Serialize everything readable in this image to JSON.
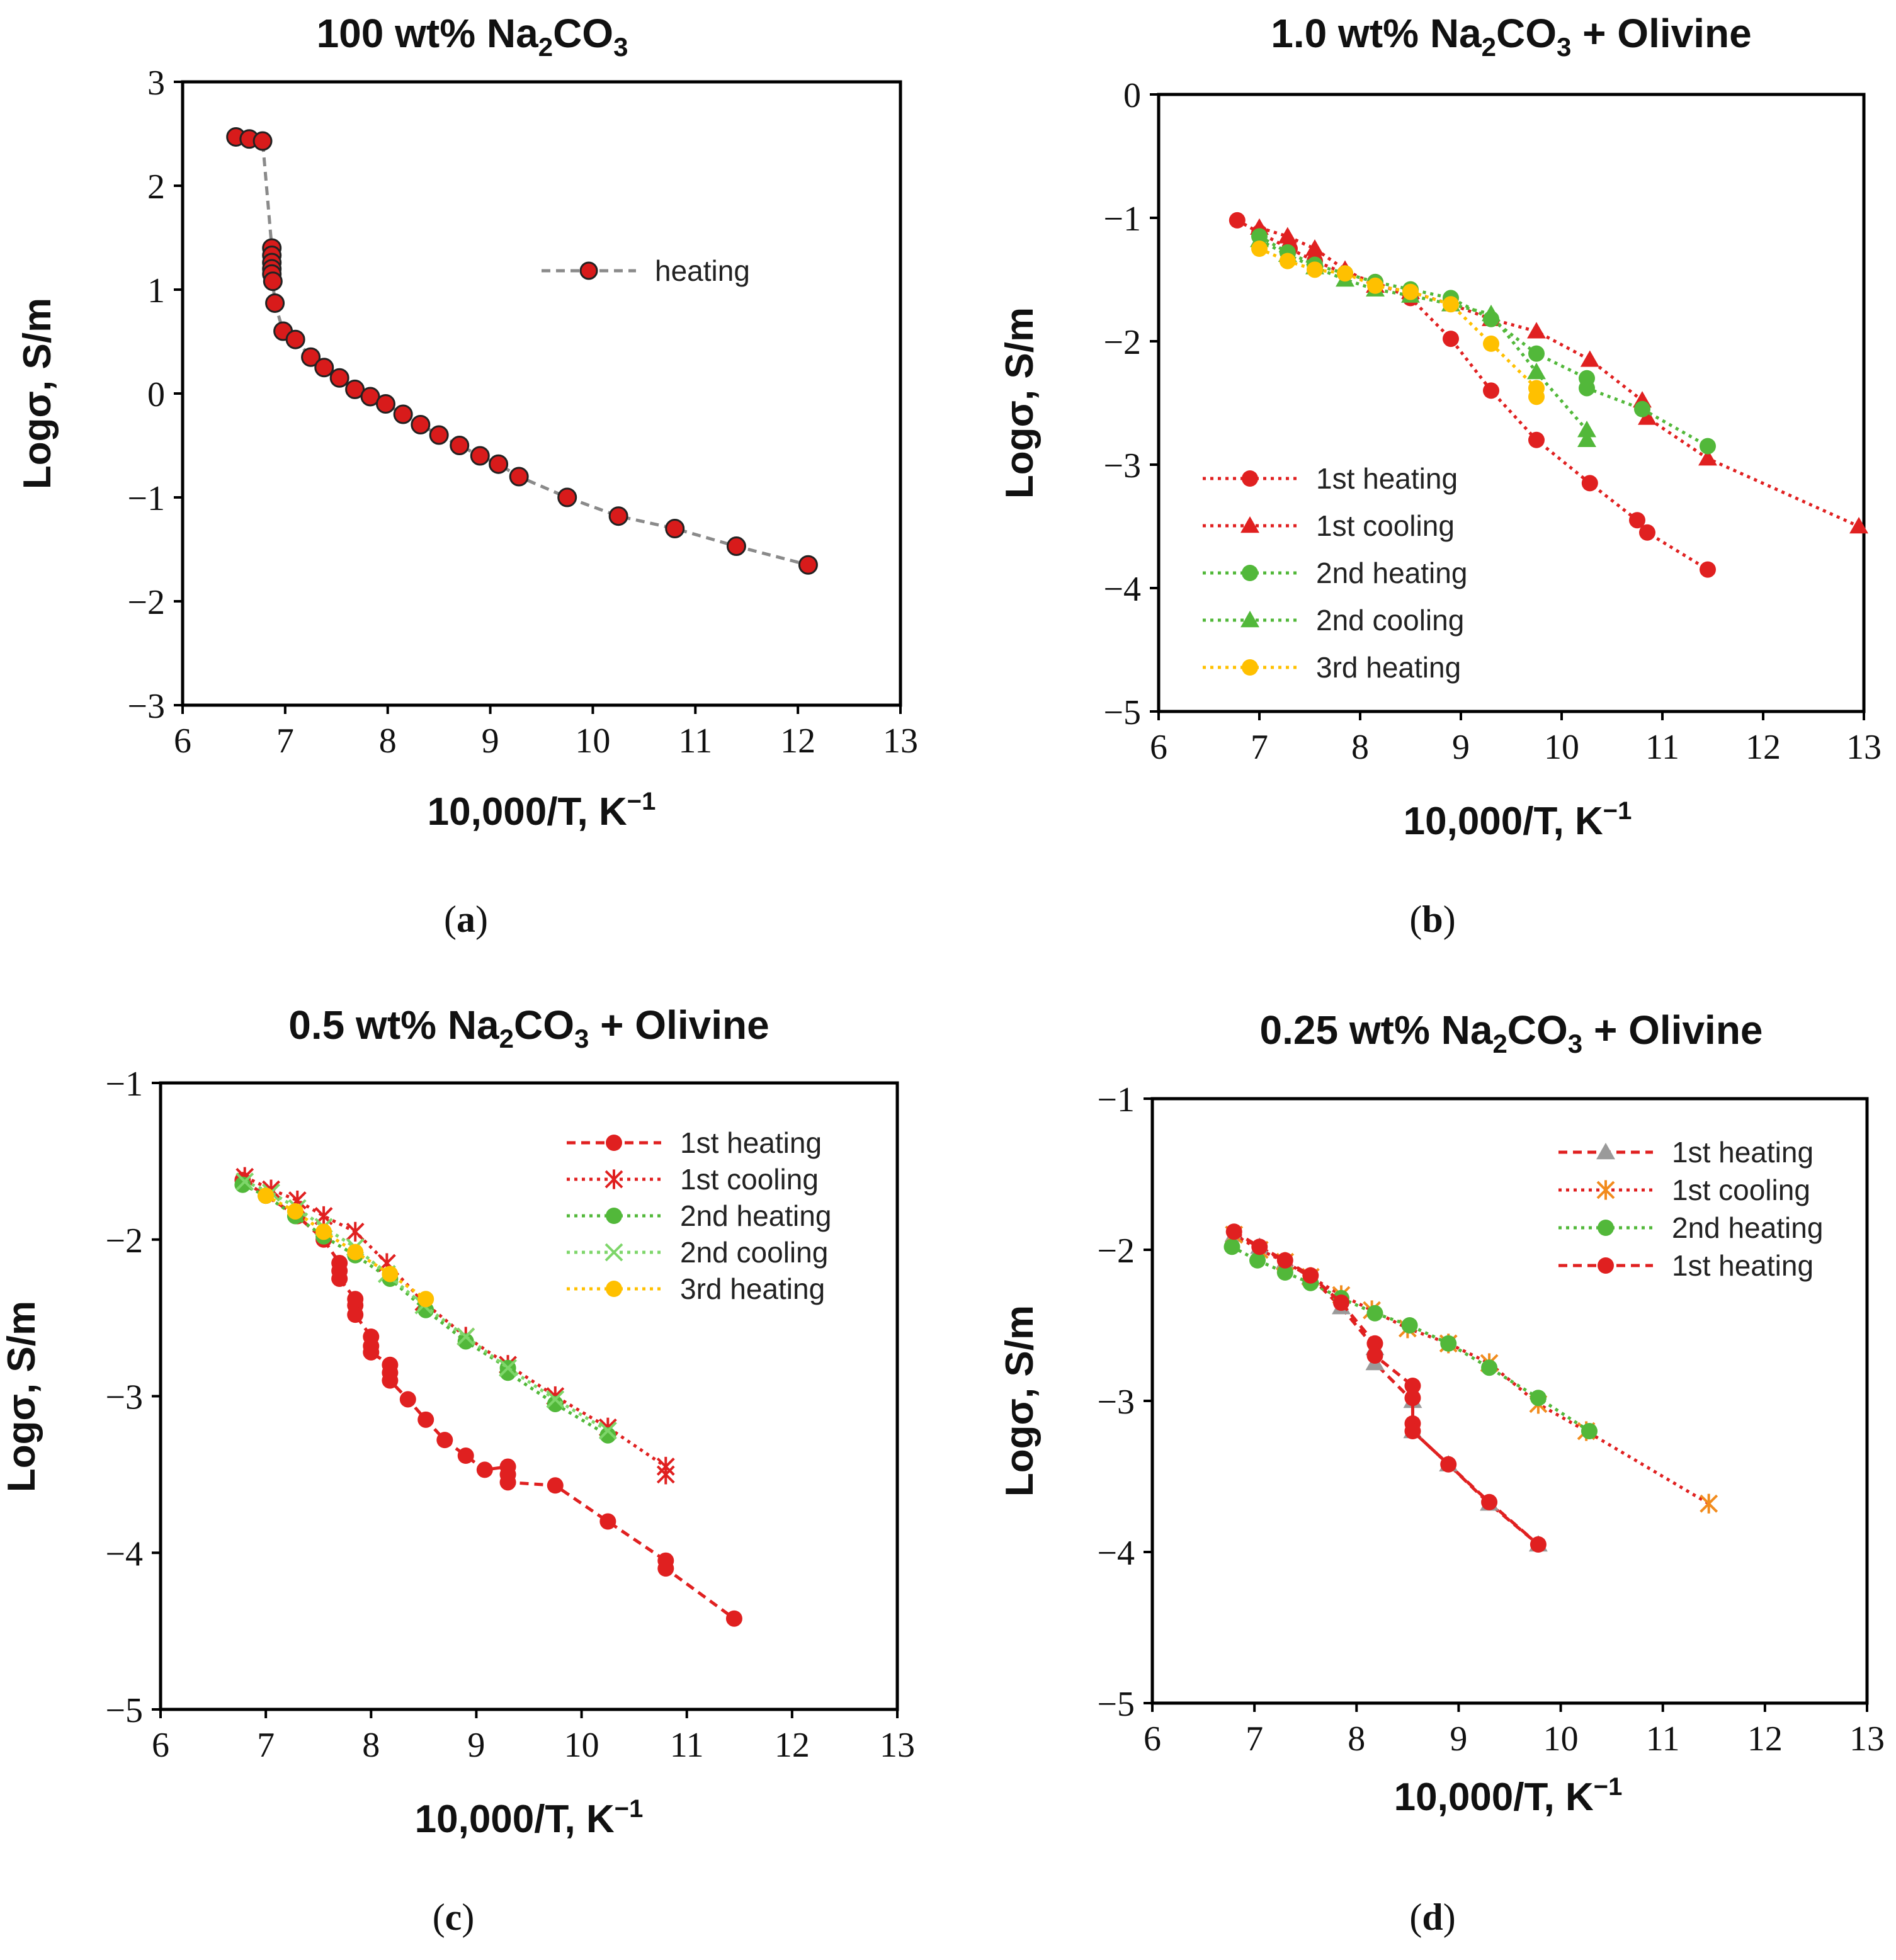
{
  "chart_data": [
    {
      "type": "scatter",
      "panel": "a",
      "caption_letter": "a",
      "title_parts": [
        "100 wt%  Na",
        "2",
        "CO",
        "3",
        ""
      ],
      "xlabel": "10,000/T, K",
      "xlabel_sup": "−1",
      "ylabel": "Logσ, S/m",
      "xlim": [
        6,
        13
      ],
      "ylim": [
        -3,
        3
      ],
      "xticks": [
        "6",
        "7",
        "8",
        "9",
        "10",
        "11",
        "12",
        "13"
      ],
      "yticks": [
        "−3",
        "−2",
        "−1",
        "0",
        "1",
        "2",
        "3"
      ],
      "legend": "center-right",
      "series": [
        {
          "name": "heating",
          "color": "#d81b1b",
          "edge": "#222222",
          "marker": "circle",
          "line": "dashed",
          "line_color": "#8a8a8a",
          "x": [
            6.52,
            6.65,
            6.78,
            6.87,
            6.87,
            6.87,
            6.87,
            6.87,
            6.88,
            6.9,
            6.98,
            7.1,
            7.25,
            7.38,
            7.53,
            7.68,
            7.83,
            7.98,
            8.15,
            8.32,
            8.5,
            8.7,
            8.9,
            9.08,
            9.28,
            9.75,
            10.25,
            10.8,
            11.4,
            12.1
          ],
          "y": [
            2.47,
            2.45,
            2.43,
            1.4,
            1.33,
            1.26,
            1.2,
            1.15,
            1.08,
            0.87,
            0.6,
            0.52,
            0.35,
            0.25,
            0.15,
            0.04,
            -0.03,
            -0.1,
            -0.2,
            -0.3,
            -0.4,
            -0.5,
            -0.6,
            -0.68,
            -0.8,
            -1.0,
            -1.18,
            -1.3,
            -1.47,
            -1.65
          ]
        }
      ]
    },
    {
      "type": "scatter",
      "panel": "b",
      "caption_letter": "b",
      "title_parts": [
        "1.0 wt%  Na",
        "2",
        "CO",
        "3",
        " + Olivine"
      ],
      "xlabel": "10,000/T, K",
      "xlabel_sup": "−1",
      "ylabel": "Logσ, S/m",
      "xlim": [
        6,
        13
      ],
      "ylim": [
        -5,
        0
      ],
      "xticks": [
        "6",
        "7",
        "8",
        "9",
        "10",
        "11",
        "12",
        "13"
      ],
      "yticks": [
        "−5",
        "−4",
        "−3",
        "−2",
        "−1",
        "0"
      ],
      "legend": "bottom-left",
      "series": [
        {
          "name": "1st heating",
          "color": "#e02020",
          "marker": "circle",
          "line": "dotted",
          "x": [
            6.78,
            7.0,
            7.3,
            7.55,
            7.85,
            8.15,
            8.5,
            8.9,
            9.3,
            9.75,
            10.28,
            10.75,
            10.85,
            11.45
          ],
          "y": [
            -1.02,
            -1.12,
            -1.25,
            -1.35,
            -1.45,
            -1.52,
            -1.65,
            -1.98,
            -2.4,
            -2.8,
            -3.15,
            -3.45,
            -3.55,
            -3.85
          ]
        },
        {
          "name": "1st cooling",
          "color": "#e02020",
          "marker": "triangle",
          "line": "dotted",
          "x": [
            7.0,
            7.28,
            7.55,
            7.85,
            8.15,
            8.5,
            8.9,
            9.3,
            9.75,
            10.28,
            10.8,
            10.85,
            11.45,
            12.95
          ],
          "y": [
            -1.08,
            -1.15,
            -1.25,
            -1.42,
            -1.55,
            -1.6,
            -1.7,
            -1.82,
            -1.92,
            -2.15,
            -2.48,
            -2.62,
            -2.95,
            -3.5
          ]
        },
        {
          "name": "2nd heating",
          "color": "#52b83a",
          "marker": "circle",
          "line": "dotted",
          "x": [
            7.0,
            7.28,
            7.55,
            7.85,
            8.15,
            8.5,
            8.9,
            9.3,
            9.75,
            10.25,
            10.25,
            10.8,
            11.45
          ],
          "y": [
            -1.15,
            -1.28,
            -1.38,
            -1.45,
            -1.52,
            -1.58,
            -1.65,
            -1.82,
            -2.1,
            -2.3,
            -2.38,
            -2.55,
            -2.85
          ]
        },
        {
          "name": "2nd cooling",
          "color": "#52b83a",
          "marker": "triangle",
          "line": "dotted",
          "x": [
            7.0,
            7.28,
            7.55,
            7.85,
            8.15,
            8.5,
            8.9,
            9.3,
            9.75,
            10.25,
            10.25
          ],
          "y": [
            -1.18,
            -1.3,
            -1.4,
            -1.5,
            -1.58,
            -1.63,
            -1.7,
            -1.78,
            -2.25,
            -2.72,
            -2.8
          ]
        },
        {
          "name": "3rd heating",
          "color": "#ffc000",
          "marker": "circle",
          "line": "dotted",
          "x": [
            7.0,
            7.28,
            7.55,
            7.85,
            8.15,
            8.5,
            8.9,
            9.3,
            9.75,
            9.75
          ],
          "y": [
            -1.25,
            -1.35,
            -1.42,
            -1.45,
            -1.55,
            -1.6,
            -1.7,
            -2.02,
            -2.38,
            -2.45
          ]
        }
      ]
    },
    {
      "type": "scatter",
      "panel": "c",
      "caption_letter": "c",
      "title_parts": [
        "0.5 wt%  Na",
        "2",
        "CO",
        "3",
        " + Olivine"
      ],
      "xlabel": "10,000/T, K",
      "xlabel_sup": "−1",
      "ylabel": "Logσ, S/m",
      "xlim": [
        6,
        13
      ],
      "ylim": [
        -5,
        -1
      ],
      "xticks": [
        "6",
        "7",
        "8",
        "9",
        "10",
        "11",
        "12",
        "13"
      ],
      "yticks": [
        "−5",
        "−4",
        "−3",
        "−2",
        "−1"
      ],
      "legend": "top-right",
      "series": [
        {
          "name": "1st heating",
          "color": "#e02020",
          "marker": "circle",
          "line": "dashed",
          "x": [
            6.78,
            7.0,
            7.3,
            7.55,
            7.7,
            7.7,
            7.7,
            7.85,
            7.85,
            7.85,
            8.0,
            8.0,
            8.0,
            8.18,
            8.18,
            8.18,
            8.35,
            8.52,
            8.7,
            8.9,
            9.08,
            9.3,
            9.3,
            9.3,
            9.75,
            10.25,
            10.8,
            10.8,
            11.45
          ],
          "y": [
            -1.62,
            -1.72,
            -1.85,
            -2.0,
            -2.15,
            -2.2,
            -2.25,
            -2.38,
            -2.42,
            -2.48,
            -2.62,
            -2.68,
            -2.72,
            -2.8,
            -2.85,
            -2.9,
            -3.02,
            -3.15,
            -3.28,
            -3.38,
            -3.47,
            -3.45,
            -3.5,
            -3.55,
            -3.57,
            -3.8,
            -4.05,
            -4.1,
            -4.42
          ]
        },
        {
          "name": "1st cooling",
          "color": "#e02020",
          "marker": "asterisk",
          "line": "dotted",
          "x": [
            6.8,
            7.05,
            7.3,
            7.55,
            7.85,
            8.15,
            8.5,
            8.9,
            9.3,
            9.75,
            10.25,
            10.8,
            10.8
          ],
          "y": [
            -1.6,
            -1.68,
            -1.75,
            -1.85,
            -1.95,
            -2.15,
            -2.4,
            -2.62,
            -2.8,
            -3.0,
            -3.2,
            -3.45,
            -3.5
          ]
        },
        {
          "name": "2nd heating",
          "color": "#52b83a",
          "marker": "circle",
          "line": "dotted",
          "x": [
            6.78,
            7.0,
            7.28,
            7.55,
            7.85,
            8.18,
            8.52,
            8.9,
            9.3,
            9.3,
            9.75,
            10.25
          ],
          "y": [
            -1.65,
            -1.72,
            -1.85,
            -1.98,
            -2.1,
            -2.25,
            -2.45,
            -2.65,
            -2.82,
            -2.85,
            -3.05,
            -3.25
          ]
        },
        {
          "name": "2nd cooling",
          "color": "#7ed66a",
          "marker": "cross",
          "line": "dotted",
          "x": [
            6.8,
            7.05,
            7.3,
            7.55,
            7.85,
            8.15,
            8.5,
            8.9,
            9.3,
            9.75,
            10.25
          ],
          "y": [
            -1.63,
            -1.7,
            -1.8,
            -1.92,
            -2.05,
            -2.22,
            -2.42,
            -2.62,
            -2.82,
            -3.02,
            -3.22
          ]
        },
        {
          "name": "3rd heating",
          "color": "#ffc000",
          "marker": "circle",
          "line": "dotted",
          "x": [
            7.0,
            7.28,
            7.55,
            7.85,
            8.18,
            8.52
          ],
          "y": [
            -1.72,
            -1.82,
            -1.95,
            -2.08,
            -2.22,
            -2.38
          ]
        }
      ]
    },
    {
      "type": "scatter",
      "panel": "d",
      "caption_letter": "d",
      "title_parts": [
        "0.25 wt%  Na",
        "2",
        "CO",
        "3",
        " + Olivine"
      ],
      "xlabel": "10,000/T, K",
      "xlabel_sup": "−1",
      "ylabel": "Logσ, S/m",
      "xlim": [
        6,
        13
      ],
      "ylim": [
        -5,
        -1
      ],
      "xticks": [
        "6",
        "7",
        "8",
        "9",
        "10",
        "11",
        "12",
        "13"
      ],
      "yticks": [
        "−5",
        "−4",
        "−3",
        "−2",
        "−1"
      ],
      "legend": "top-right",
      "series": [
        {
          "name": "1st heating",
          "color": "#9a9a9a",
          "marker": "triangle",
          "line": "dashed",
          "line_color": "#e02020",
          "x": [
            6.8,
            7.05,
            7.3,
            7.55,
            7.85,
            8.18,
            8.18,
            8.55,
            8.55,
            8.9,
            9.3,
            9.78
          ],
          "y": [
            -1.9,
            -1.98,
            -2.08,
            -2.18,
            -2.38,
            -2.65,
            -2.75,
            -3.0,
            -3.2,
            -3.42,
            -3.68,
            -3.95
          ]
        },
        {
          "name": "1st cooling",
          "color": "#f28c1e",
          "marker": "asterisk",
          "line": "dotted",
          "line_color": "#e02020",
          "x": [
            6.8,
            7.05,
            7.3,
            7.55,
            7.85,
            8.15,
            8.5,
            8.9,
            9.3,
            9.78,
            10.25,
            11.45
          ],
          "y": [
            -1.9,
            -2.0,
            -2.08,
            -2.18,
            -2.3,
            -2.4,
            -2.52,
            -2.62,
            -2.75,
            -3.02,
            -3.2,
            -3.68
          ]
        },
        {
          "name": "2nd heating",
          "color": "#52b83a",
          "marker": "circle",
          "line": "dotted",
          "x": [
            6.78,
            7.03,
            7.3,
            7.55,
            7.85,
            8.18,
            8.52,
            8.9,
            9.3,
            9.78,
            10.28
          ],
          "y": [
            -1.98,
            -2.07,
            -2.15,
            -2.22,
            -2.32,
            -2.42,
            -2.5,
            -2.62,
            -2.78,
            -2.98,
            -3.2
          ]
        },
        {
          "name": "1st heating",
          "color": "#e02020",
          "marker": "circle",
          "line": "dashed",
          "x": [
            6.8,
            7.05,
            7.3,
            7.55,
            7.85,
            8.18,
            8.18,
            8.55,
            8.55,
            8.55,
            8.55,
            8.9,
            9.3,
            9.78
          ],
          "y": [
            -1.88,
            -1.98,
            -2.07,
            -2.17,
            -2.35,
            -2.62,
            -2.7,
            -2.9,
            -2.98,
            -3.15,
            -3.2,
            -3.42,
            -3.67,
            -3.95
          ]
        }
      ]
    }
  ]
}
